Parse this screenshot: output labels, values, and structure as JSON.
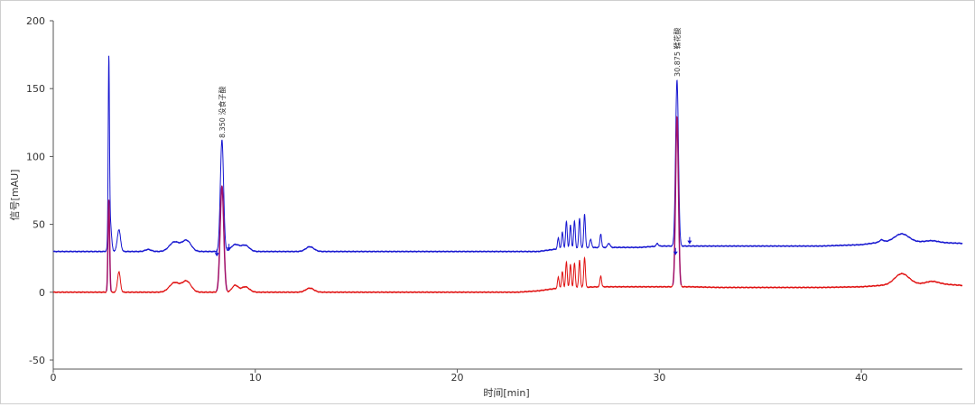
{
  "chart_data": {
    "type": "line",
    "xlabel": "时间[min]",
    "ylabel": "信号[mAU]",
    "xlim": [
      0,
      45
    ],
    "ylim": [
      -50,
      200
    ],
    "x_ticks": [
      "0",
      "10",
      "20",
      "30",
      "40"
    ],
    "y_ticks": [
      "-50",
      "0",
      "50",
      "100",
      "150",
      "200"
    ],
    "grid": false,
    "colors": {
      "blue": "#1515d0",
      "red": "#e01010",
      "peak_fill": "#a0106a"
    },
    "peak_labels": [
      {
        "time": 8.35,
        "label": "8.350  没食子酸"
      },
      {
        "time": 30.875,
        "label": "30.875  鞣花酸"
      }
    ],
    "integration_markers": [
      {
        "time": 8.1,
        "y": 27
      },
      {
        "time": 8.7,
        "y": 31
      },
      {
        "time": 30.8,
        "y": 28
      },
      {
        "time": 31.5,
        "y": 36
      }
    ],
    "series": [
      {
        "color": "#1515d0",
        "baseline": [
          [
            0,
            30
          ],
          [
            5,
            30
          ],
          [
            7,
            30
          ],
          [
            10,
            30
          ],
          [
            15,
            30
          ],
          [
            20,
            30
          ],
          [
            24,
            30
          ],
          [
            25,
            32
          ],
          [
            27,
            33
          ],
          [
            29,
            33
          ],
          [
            30,
            34
          ],
          [
            30.5,
            34
          ],
          [
            31.5,
            34
          ],
          [
            33,
            34
          ],
          [
            35,
            34
          ],
          [
            38,
            34
          ],
          [
            40,
            35
          ],
          [
            41,
            37
          ],
          [
            42.5,
            37
          ],
          [
            43,
            37
          ],
          [
            45,
            36
          ]
        ],
        "peaks": [
          {
            "t": 2.75,
            "h": 125,
            "w": 0.03
          },
          {
            "t": 2.8,
            "h": 25,
            "w": 0.07
          },
          {
            "t": 3.25,
            "h": 16,
            "w": 0.08
          },
          {
            "t": 4.7,
            "h": 1.5,
            "w": 0.15
          },
          {
            "t": 6.0,
            "h": 7,
            "w": 0.25
          },
          {
            "t": 6.6,
            "h": 8,
            "w": 0.22
          },
          {
            "t": 8.35,
            "h": 82,
            "w": 0.08
          },
          {
            "t": 9.0,
            "h": 5,
            "w": 0.2
          },
          {
            "t": 9.5,
            "h": 4.5,
            "w": 0.2
          },
          {
            "t": 12.7,
            "h": 3.5,
            "w": 0.2
          },
          {
            "t": 25.0,
            "h": 8,
            "w": 0.04
          },
          {
            "t": 25.2,
            "h": 12,
            "w": 0.04
          },
          {
            "t": 25.4,
            "h": 20,
            "w": 0.04
          },
          {
            "t": 25.6,
            "h": 17,
            "w": 0.04
          },
          {
            "t": 25.8,
            "h": 20,
            "w": 0.04
          },
          {
            "t": 26.05,
            "h": 22,
            "w": 0.04
          },
          {
            "t": 26.3,
            "h": 25,
            "w": 0.04
          },
          {
            "t": 26.6,
            "h": 6,
            "w": 0.05
          },
          {
            "t": 27.1,
            "h": 10,
            "w": 0.04
          },
          {
            "t": 27.5,
            "h": 3,
            "w": 0.06
          },
          {
            "t": 30.875,
            "h": 122,
            "w": 0.07
          },
          {
            "t": 29.9,
            "h": 2,
            "w": 0.05
          },
          {
            "t": 41.0,
            "h": 1.5,
            "w": 0.1
          },
          {
            "t": 42.0,
            "h": 6,
            "w": 0.35
          },
          {
            "t": 43.5,
            "h": 1.2,
            "w": 0.3
          }
        ]
      },
      {
        "color": "#e01010",
        "baseline": [
          [
            0,
            0
          ],
          [
            5,
            0
          ],
          [
            10,
            0
          ],
          [
            15,
            0
          ],
          [
            20,
            0
          ],
          [
            23,
            0
          ],
          [
            24,
            1
          ],
          [
            25,
            3
          ],
          [
            27,
            4
          ],
          [
            29,
            4
          ],
          [
            30,
            4
          ],
          [
            31.5,
            4
          ],
          [
            33,
            3.5
          ],
          [
            35,
            3.5
          ],
          [
            38,
            3.5
          ],
          [
            40,
            4
          ],
          [
            41,
            5
          ],
          [
            42.5,
            6
          ],
          [
            44,
            6
          ],
          [
            45,
            5
          ]
        ],
        "peaks": [
          {
            "t": 2.75,
            "h": 68,
            "w": 0.04
          },
          {
            "t": 3.25,
            "h": 15,
            "w": 0.07
          },
          {
            "t": 6.0,
            "h": 7,
            "w": 0.25
          },
          {
            "t": 6.6,
            "h": 8,
            "w": 0.22
          },
          {
            "t": 8.35,
            "h": 78,
            "w": 0.09
          },
          {
            "t": 9.0,
            "h": 5,
            "w": 0.15
          },
          {
            "t": 9.5,
            "h": 4,
            "w": 0.2
          },
          {
            "t": 12.7,
            "h": 3,
            "w": 0.2
          },
          {
            "t": 25.0,
            "h": 8,
            "w": 0.04
          },
          {
            "t": 25.2,
            "h": 12,
            "w": 0.04
          },
          {
            "t": 25.4,
            "h": 19,
            "w": 0.04
          },
          {
            "t": 25.6,
            "h": 17,
            "w": 0.04
          },
          {
            "t": 25.8,
            "h": 18,
            "w": 0.04
          },
          {
            "t": 26.05,
            "h": 20,
            "w": 0.04
          },
          {
            "t": 26.3,
            "h": 22,
            "w": 0.04
          },
          {
            "t": 27.1,
            "h": 8,
            "w": 0.04
          },
          {
            "t": 30.875,
            "h": 125,
            "w": 0.07
          },
          {
            "t": 42.0,
            "h": 8,
            "w": 0.35
          },
          {
            "t": 43.5,
            "h": 2,
            "w": 0.3
          }
        ]
      }
    ]
  }
}
